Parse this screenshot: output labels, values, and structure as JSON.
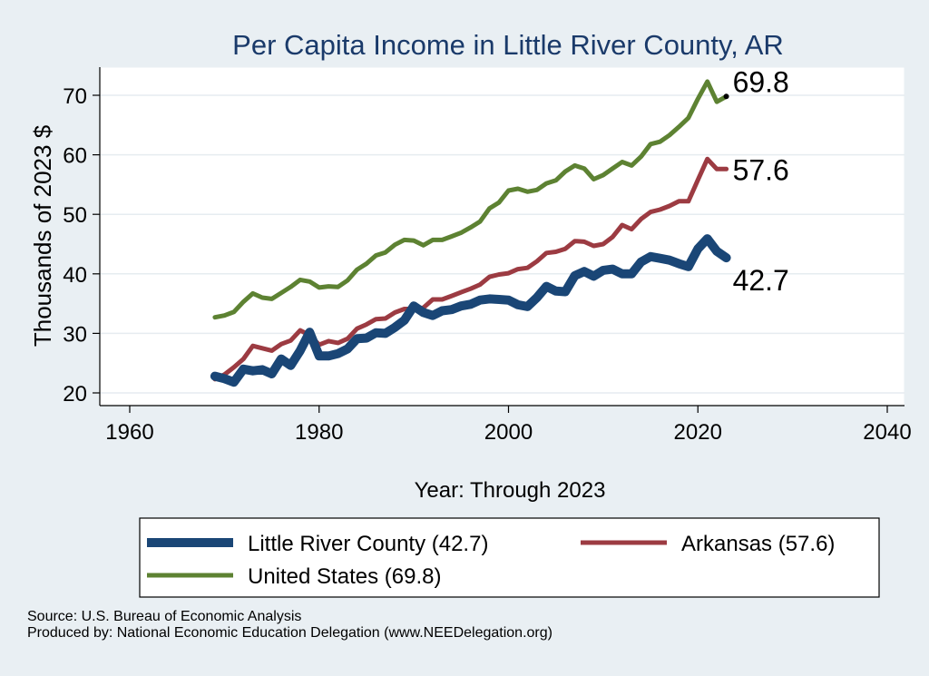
{
  "chart_data": {
    "type": "line",
    "title": "Per Capita Income in Little River County, AR",
    "xlabel": "Year: Through 2023",
    "ylabel": "Thousands of 2023 $",
    "xlim": [
      1960,
      2040
    ],
    "ylim": [
      20,
      75
    ],
    "xticks": [
      1960,
      1980,
      2000,
      2020,
      2040
    ],
    "yticks": [
      20,
      30,
      40,
      50,
      60,
      70
    ],
    "grid": "horizontal",
    "legend_position": "bottom",
    "series": [
      {
        "name": "Little River County (42.7)",
        "color": "#1a4676",
        "end_label": "42.7",
        "points": [
          [
            1969,
            22.8
          ],
          [
            1970,
            22.4
          ],
          [
            1971,
            21.8
          ],
          [
            1972,
            24.0
          ],
          [
            1973,
            23.7
          ],
          [
            1974,
            23.9
          ],
          [
            1975,
            23.2
          ],
          [
            1976,
            25.7
          ],
          [
            1977,
            24.6
          ],
          [
            1978,
            27.1
          ],
          [
            1979,
            30.2
          ],
          [
            1980,
            26.2
          ],
          [
            1981,
            26.2
          ],
          [
            1982,
            26.6
          ],
          [
            1983,
            27.4
          ],
          [
            1984,
            29.1
          ],
          [
            1985,
            29.2
          ],
          [
            1986,
            30.1
          ],
          [
            1987,
            30.0
          ],
          [
            1988,
            31.0
          ],
          [
            1989,
            32.2
          ],
          [
            1990,
            34.6
          ],
          [
            1991,
            33.5
          ],
          [
            1992,
            33.0
          ],
          [
            1993,
            33.8
          ],
          [
            1994,
            34.0
          ],
          [
            1995,
            34.6
          ],
          [
            1996,
            34.9
          ],
          [
            1997,
            35.6
          ],
          [
            1998,
            35.8
          ],
          [
            1999,
            35.7
          ],
          [
            2000,
            35.6
          ],
          [
            2001,
            34.8
          ],
          [
            2002,
            34.5
          ],
          [
            2003,
            36.0
          ],
          [
            2004,
            37.9
          ],
          [
            2005,
            37.1
          ],
          [
            2006,
            37.0
          ],
          [
            2007,
            39.7
          ],
          [
            2008,
            40.4
          ],
          [
            2009,
            39.6
          ],
          [
            2010,
            40.6
          ],
          [
            2011,
            40.8
          ],
          [
            2012,
            40.0
          ],
          [
            2013,
            40.0
          ],
          [
            2014,
            42.0
          ],
          [
            2015,
            42.9
          ],
          [
            2016,
            42.6
          ],
          [
            2017,
            42.3
          ],
          [
            2018,
            41.7
          ],
          [
            2019,
            41.2
          ],
          [
            2020,
            44.2
          ],
          [
            2021,
            45.9
          ],
          [
            2022,
            43.8
          ],
          [
            2023,
            42.7
          ]
        ]
      },
      {
        "name": "Arkansas (57.6)",
        "color": "#9c3b42",
        "end_label": "57.6",
        "points": [
          [
            1969,
            22.3
          ],
          [
            1970,
            23.1
          ],
          [
            1971,
            24.3
          ],
          [
            1972,
            25.7
          ],
          [
            1973,
            27.9
          ],
          [
            1974,
            27.5
          ],
          [
            1975,
            27.1
          ],
          [
            1976,
            28.2
          ],
          [
            1977,
            28.8
          ],
          [
            1978,
            30.5
          ],
          [
            1979,
            29.7
          ],
          [
            1980,
            28.1
          ],
          [
            1981,
            28.7
          ],
          [
            1982,
            28.4
          ],
          [
            1983,
            29.1
          ],
          [
            1984,
            30.8
          ],
          [
            1985,
            31.5
          ],
          [
            1986,
            32.4
          ],
          [
            1987,
            32.5
          ],
          [
            1988,
            33.5
          ],
          [
            1989,
            34.1
          ],
          [
            1990,
            34.1
          ],
          [
            1991,
            34.3
          ],
          [
            1992,
            35.7
          ],
          [
            1993,
            35.7
          ],
          [
            1994,
            36.3
          ],
          [
            1995,
            36.9
          ],
          [
            1996,
            37.5
          ],
          [
            1997,
            38.2
          ],
          [
            1998,
            39.5
          ],
          [
            1999,
            39.9
          ],
          [
            2000,
            40.1
          ],
          [
            2001,
            40.8
          ],
          [
            2002,
            41.0
          ],
          [
            2003,
            42.1
          ],
          [
            2004,
            43.5
          ],
          [
            2005,
            43.7
          ],
          [
            2006,
            44.2
          ],
          [
            2007,
            45.5
          ],
          [
            2008,
            45.4
          ],
          [
            2009,
            44.7
          ],
          [
            2010,
            45.0
          ],
          [
            2011,
            46.2
          ],
          [
            2012,
            48.2
          ],
          [
            2013,
            47.5
          ],
          [
            2014,
            49.2
          ],
          [
            2015,
            50.4
          ],
          [
            2016,
            50.8
          ],
          [
            2017,
            51.4
          ],
          [
            2018,
            52.2
          ],
          [
            2019,
            52.2
          ],
          [
            2020,
            55.8
          ],
          [
            2021,
            59.3
          ],
          [
            2022,
            57.6
          ],
          [
            2023,
            57.6
          ]
        ]
      },
      {
        "name": "United States (69.8)",
        "color": "#5d8232",
        "end_label": "69.8",
        "points": [
          [
            1969,
            32.7
          ],
          [
            1970,
            33.0
          ],
          [
            1971,
            33.6
          ],
          [
            1972,
            35.3
          ],
          [
            1973,
            36.7
          ],
          [
            1974,
            36.0
          ],
          [
            1975,
            35.8
          ],
          [
            1976,
            36.8
          ],
          [
            1977,
            37.8
          ],
          [
            1978,
            39.0
          ],
          [
            1979,
            38.7
          ],
          [
            1980,
            37.7
          ],
          [
            1981,
            37.9
          ],
          [
            1982,
            37.8
          ],
          [
            1983,
            38.9
          ],
          [
            1984,
            40.7
          ],
          [
            1985,
            41.7
          ],
          [
            1986,
            43.1
          ],
          [
            1987,
            43.6
          ],
          [
            1988,
            44.9
          ],
          [
            1989,
            45.7
          ],
          [
            1990,
            45.6
          ],
          [
            1991,
            44.8
          ],
          [
            1992,
            45.7
          ],
          [
            1993,
            45.7
          ],
          [
            1994,
            46.3
          ],
          [
            1995,
            46.9
          ],
          [
            1996,
            47.8
          ],
          [
            1997,
            48.8
          ],
          [
            1998,
            51.0
          ],
          [
            1999,
            52.0
          ],
          [
            2000,
            54.0
          ],
          [
            2001,
            54.3
          ],
          [
            2002,
            53.8
          ],
          [
            2003,
            54.1
          ],
          [
            2004,
            55.2
          ],
          [
            2005,
            55.7
          ],
          [
            2006,
            57.2
          ],
          [
            2007,
            58.2
          ],
          [
            2008,
            57.7
          ],
          [
            2009,
            55.9
          ],
          [
            2010,
            56.6
          ],
          [
            2011,
            57.7
          ],
          [
            2012,
            58.8
          ],
          [
            2013,
            58.2
          ],
          [
            2014,
            59.7
          ],
          [
            2015,
            61.8
          ],
          [
            2016,
            62.2
          ],
          [
            2017,
            63.3
          ],
          [
            2018,
            64.7
          ],
          [
            2019,
            66.2
          ],
          [
            2020,
            69.4
          ],
          [
            2021,
            72.3
          ],
          [
            2022,
            68.9
          ],
          [
            2023,
            69.8
          ]
        ]
      }
    ]
  },
  "source": {
    "line1": "Source: U.S. Bureau of Economic Analysis",
    "line2": "Produced by: National Economic Education Delegation (www.NEEDelegation.org)"
  }
}
